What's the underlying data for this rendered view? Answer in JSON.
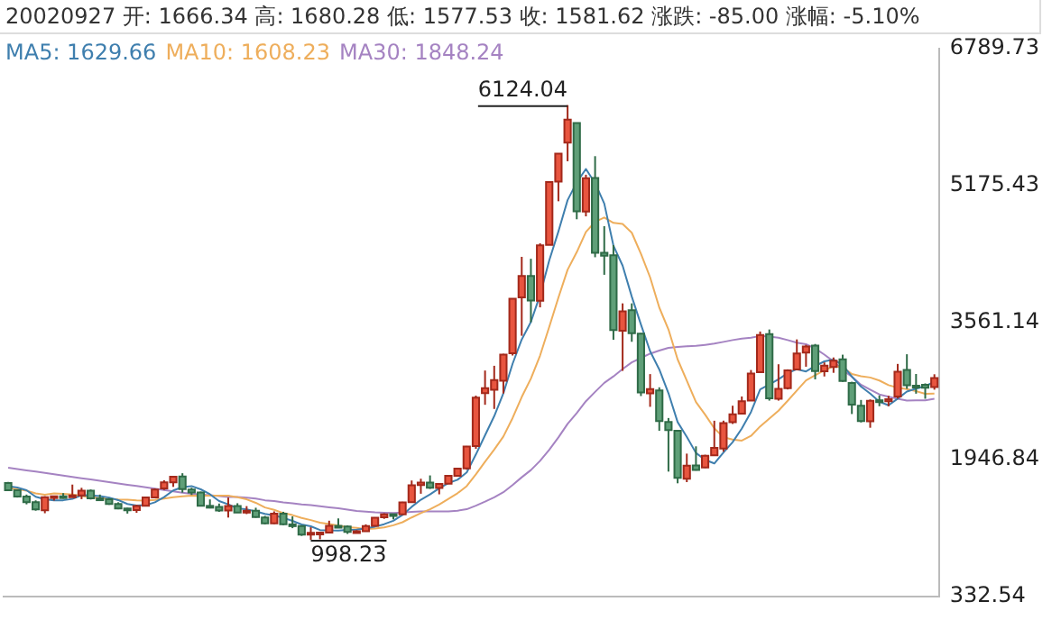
{
  "chart_data": {
    "type": "candlestick",
    "title": "20020927 开: 1666.34 高: 1680.28 低: 1577.53 收: 1581.62 涨跌: -85.00 涨幅: -5.10%",
    "categories": [
      null,
      null,
      null,
      null,
      null,
      null,
      null,
      null,
      null,
      null,
      null,
      null,
      null,
      null,
      null,
      null,
      null,
      null,
      null,
      null,
      null,
      null,
      null,
      null,
      null,
      null,
      null,
      null,
      null,
      null,
      null,
      null,
      null,
      null,
      null,
      null,
      null,
      null,
      null,
      null,
      null,
      null,
      null,
      null,
      null,
      null,
      null,
      null,
      null,
      null,
      null,
      null,
      null,
      null,
      null,
      null,
      null,
      null,
      null,
      null,
      null,
      null,
      null,
      null,
      null,
      null,
      null,
      null,
      null,
      null,
      null,
      null,
      null,
      null,
      null,
      null,
      null,
      null,
      null,
      null,
      null,
      null,
      null,
      null,
      null,
      null,
      null,
      null,
      null,
      null,
      null,
      null,
      null,
      null,
      null,
      null,
      null,
      null,
      null,
      null,
      null,
      null
    ],
    "ohlc": [
      [
        1666.34,
        1680.28,
        1577.53,
        1581.62
      ],
      [
        1581,
        1589,
        1496,
        1507
      ],
      [
        1507,
        1531,
        1416,
        1442
      ],
      [
        1442,
        1463,
        1341,
        1357
      ],
      [
        1347,
        1512,
        1311,
        1499
      ],
      [
        1499,
        1515,
        1461,
        1511
      ],
      [
        1511,
        1548,
        1483,
        1510
      ],
      [
        1512,
        1649,
        1503,
        1521
      ],
      [
        1522,
        1611,
        1477,
        1576
      ],
      [
        1577,
        1591,
        1473,
        1487
      ],
      [
        1486,
        1531,
        1461,
        1477
      ],
      [
        1477,
        1489,
        1410,
        1421
      ],
      [
        1421,
        1440,
        1358,
        1367
      ],
      [
        1367,
        1375,
        1307,
        1348
      ],
      [
        1348,
        1412,
        1316,
        1397
      ],
      [
        1398,
        1507,
        1398,
        1497
      ],
      [
        1497,
        1604,
        1492,
        1590
      ],
      [
        1603,
        1700,
        1585,
        1675
      ],
      [
        1676,
        1744,
        1622,
        1742
      ],
      [
        1745,
        1783,
        1554,
        1595
      ],
      [
        1591,
        1612,
        1527,
        1555
      ],
      [
        1556,
        1566,
        1399,
        1399
      ],
      [
        1398,
        1474,
        1369,
        1386
      ],
      [
        1385,
        1425,
        1327,
        1342
      ],
      [
        1342,
        1496,
        1260,
        1396
      ],
      [
        1396,
        1429,
        1318,
        1320
      ],
      [
        1321,
        1395,
        1301,
        1340
      ],
      [
        1340,
        1376,
        1259,
        1266
      ],
      [
        1261,
        1280,
        1180,
        1191
      ],
      [
        1192,
        1333,
        1184,
        1306
      ],
      [
        1307,
        1328,
        1171,
        1181
      ],
      [
        1180,
        1274,
        1135,
        1159
      ],
      [
        1160,
        1163,
        1044,
        1060
      ],
      [
        1058,
        1146,
        998.23,
        1080
      ],
      [
        1081,
        1093,
        1004,
        1083
      ],
      [
        1083,
        1223,
        1082,
        1162
      ],
      [
        1162,
        1250,
        1146,
        1155
      ],
      [
        1155,
        1167,
        1067,
        1092
      ],
      [
        1092,
        1111,
        1074,
        1099
      ],
      [
        1099,
        1180,
        1096,
        1161
      ],
      [
        1163,
        1264,
        1156,
        1258
      ],
      [
        1263,
        1311,
        1245,
        1299
      ],
      [
        1300,
        1305,
        1239,
        1298
      ],
      [
        1299,
        1446,
        1299,
        1440
      ],
      [
        1441,
        1697,
        1440,
        1641
      ],
      [
        1643,
        1718,
        1541,
        1672
      ],
      [
        1673,
        1757,
        1598,
        1612
      ],
      [
        1609,
        1659,
        1534,
        1658
      ],
      [
        1660,
        1762,
        1657,
        1752
      ],
      [
        1753,
        1839,
        1749,
        1837
      ],
      [
        1841,
        2104,
        1825,
        2099
      ],
      [
        2102,
        2698,
        2070,
        2675
      ],
      [
        2728,
        2994,
        2590,
        2786
      ],
      [
        2768,
        3050,
        2541,
        2881
      ],
      [
        2873,
        3191,
        2723,
        3183
      ],
      [
        3197,
        3841,
        3171,
        3841
      ],
      [
        3856,
        4335,
        3404,
        4109
      ],
      [
        4109,
        4312,
        3563,
        3820
      ],
      [
        3816,
        4494,
        3739,
        4471
      ],
      [
        4476,
        5219,
        4476,
        5218
      ],
      [
        5221,
        5552,
        4990,
        5552
      ],
      [
        5683,
        6124.04,
        5462,
        5954
      ],
      [
        5914,
        5917,
        4778,
        4871
      ],
      [
        4869,
        5303,
        4812,
        5261
      ],
      [
        5265,
        5522,
        4330,
        4383
      ],
      [
        4382,
        4696,
        4123,
        4348
      ],
      [
        4353,
        4473,
        3357,
        3472
      ],
      [
        3464,
        3786,
        2990,
        3693
      ],
      [
        3704,
        3786,
        3333,
        3433
      ],
      [
        3430,
        3436,
        2693,
        2736
      ],
      [
        2726,
        2952,
        2566,
        2775
      ],
      [
        2758,
        2796,
        2284,
        2397
      ],
      [
        2387,
        2434,
        1802,
        2293
      ],
      [
        2285,
        2294,
        1664,
        1728
      ],
      [
        1719,
        2014,
        1678,
        1871
      ],
      [
        1875,
        2100,
        1814,
        1821
      ],
      [
        1850,
        2001,
        1844,
        1990
      ],
      [
        1994,
        2402,
        1990,
        2082
      ],
      [
        2073,
        2403,
        2037,
        2373
      ],
      [
        2386,
        2579,
        2364,
        2477
      ],
      [
        2485,
        2688,
        2484,
        2632
      ],
      [
        2641,
        3000,
        2639,
        2959
      ],
      [
        2975,
        3454,
        2975,
        3412
      ],
      [
        3423,
        3478,
        2639,
        2667
      ],
      [
        2661,
        3068,
        2639,
        2779
      ],
      [
        2786,
        3008,
        2771,
        2996
      ],
      [
        3007,
        3361,
        3007,
        3195
      ],
      [
        3205,
        3297,
        3039,
        3277
      ],
      [
        3289,
        3307,
        2890,
        2989
      ],
      [
        2984,
        3090,
        2924,
        3051
      ],
      [
        3036,
        3148,
        2967,
        3110
      ],
      [
        3126,
        3181,
        2861,
        2870
      ],
      [
        2848,
        2862,
        2481,
        2592
      ],
      [
        2579,
        2647,
        2382,
        2398
      ],
      [
        2395,
        2653,
        2319,
        2638
      ],
      [
        2643,
        2700,
        2573,
        2638
      ],
      [
        2633,
        2696,
        2573,
        2655
      ],
      [
        2688,
        3072,
        2664,
        2979
      ],
      [
        3000,
        3186,
        2778,
        2820
      ],
      [
        2815,
        2953,
        2721,
        2808
      ],
      [
        2825,
        2842,
        2661,
        2790
      ],
      [
        2798,
        2950,
        2768,
        2905
      ]
    ],
    "series": [
      {
        "name": "MA5: 1629.66",
        "type": "line",
        "color": "#3f7fae",
        "values": [
          1630,
          1615,
          1583,
          1505,
          1477,
          1463,
          1464,
          1480,
          1523,
          1521,
          1514,
          1496,
          1466,
          1420,
          1402,
          1406,
          1440,
          1501,
          1580,
          1620,
          1631,
          1593,
          1535,
          1455,
          1416,
          1369,
          1357,
          1333,
          1303,
          1285,
          1257,
          1221,
          1179,
          1157,
          1113,
          1109,
          1108,
          1114,
          1118,
          1134,
          1153,
          1182,
          1223,
          1291,
          1387,
          1470,
          1533,
          1605,
          1667,
          1706,
          1792,
          2004,
          2230,
          2456,
          2725,
          3073,
          3360,
          3567,
          3885,
          4292,
          4634,
          5003,
          5213,
          5371,
          5204,
          4963,
          4467,
          4231,
          3866,
          3536,
          3222,
          3007,
          2727,
          2386,
          2213,
          2022,
          1941,
          1898,
          2027,
          2149,
          2311,
          2505,
          2771,
          2829,
          2890,
          2963,
          3010,
          2983,
          3047,
          3102,
          3124,
          3059,
          2922,
          2804,
          2722,
          2627,
          2584,
          2662,
          2746,
          2780,
          2810,
          2860
        ]
      },
      {
        "name": "MA10: 1608.23",
        "type": "line",
        "color": "#eeae5c",
        "values": [
          1608,
          1595,
          1578,
          1545,
          1530,
          1546,
          1540,
          1532,
          1514,
          1499,
          1489,
          1480,
          1473,
          1472,
          1462,
          1460,
          1468,
          1484,
          1500,
          1511,
          1519,
          1517,
          1518,
          1518,
          1518,
          1500,
          1475,
          1434,
          1379,
          1351,
          1313,
          1289,
          1256,
          1230,
          1199,
          1183,
          1165,
          1147,
          1138,
          1124,
          1131,
          1145,
          1169,
          1205,
          1261,
          1312,
          1358,
          1414,
          1479,
          1547,
          1631,
          1769,
          1918,
          2062,
          2216,
          2433,
          2682,
          2899,
          3171,
          3509,
          3854,
          4182,
          4390,
          4628,
          4748,
          4799,
          4735,
          4722,
          4619,
          4370,
          4093,
          3737,
          3479,
          3126,
          2875,
          2622,
          2474,
          2313,
          2207,
          2181,
          2167,
          2223,
          2335,
          2428,
          2520,
          2637,
          2758,
          2877,
          2938,
          2996,
          3044,
          3035,
          2953,
          2926,
          2912,
          2876,
          2822,
          2792,
          2775,
          2751,
          2719,
          2722
        ]
      },
      {
        "name": "MA30: 1848.24",
        "type": "line",
        "color": "#a583c2",
        "values": [
          1848,
          1833,
          1817,
          1802,
          1786,
          1771,
          1755,
          1740,
          1724,
          1709,
          1694,
          1678,
          1663,
          1647,
          1632,
          1616,
          1601,
          1585,
          1570,
          1554,
          1539,
          1531,
          1523,
          1512,
          1503,
          1502,
          1494,
          1483,
          1464,
          1454,
          1440,
          1429,
          1416,
          1407,
          1393,
          1381,
          1369,
          1355,
          1339,
          1329,
          1321,
          1317,
          1314,
          1318,
          1326,
          1332,
          1333,
          1332,
          1332,
          1341,
          1358,
          1401,
          1448,
          1499,
          1559,
          1643,
          1735,
          1820,
          1929,
          2060,
          2205,
          2365,
          2492,
          2632,
          2742,
          2848,
          2925,
          3012,
          3090,
          3142,
          3193,
          3229,
          3262,
          3272,
          3280,
          3285,
          3297,
          3311,
          3332,
          3353,
          3371,
          3381,
          3401,
          3394,
          3381,
          3353,
          3322,
          3304,
          3255,
          3182,
          3101,
          2998,
          2922,
          2827,
          2769,
          2712,
          2685,
          2661,
          2640,
          2643,
          2643,
          2660
        ]
      }
    ],
    "ylim": [
      332.54,
      6789.73
    ],
    "yticks": [
      332.54,
      1946.84,
      3561.14,
      5175.43,
      6789.73
    ],
    "annotations": [
      "6124.04",
      "998.23"
    ],
    "legend": "top left",
    "tick_labels": "y",
    "grid": false
  }
}
